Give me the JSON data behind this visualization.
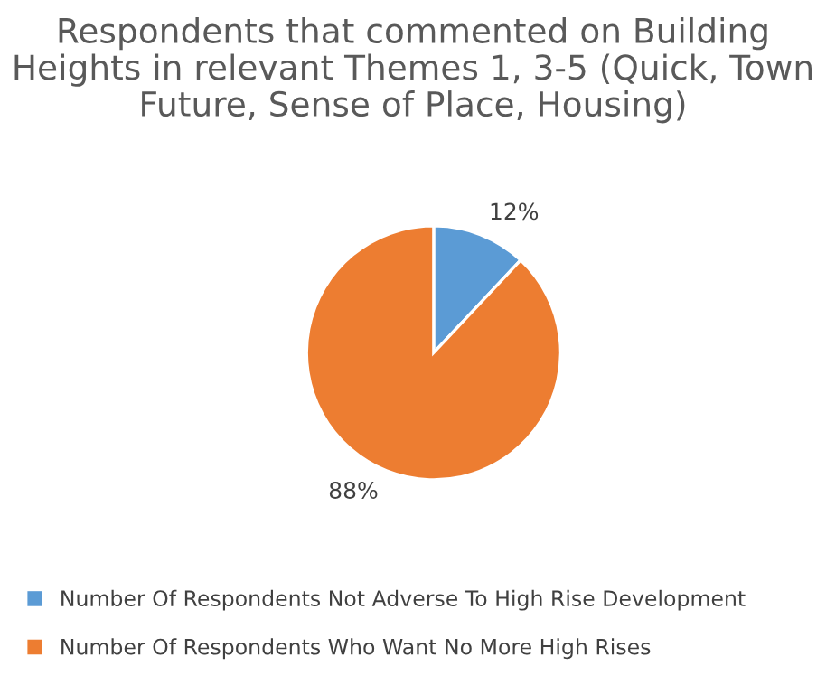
{
  "chart_data": {
    "type": "pie",
    "title": "Respondents that commented on Building Heights in relevant Themes 1, 3-5 (Quick, Town Future, Sense of Place, Housing)",
    "categories": [
      "Number Of Respondents Not Adverse To High Rise Development",
      "Number Of Respondents Who Want No More High Rises"
    ],
    "values": [
      12,
      88
    ],
    "value_labels": [
      "12%",
      "88%"
    ],
    "colors": [
      "#5b9bd5",
      "#ed7d31"
    ],
    "legend": "bottom"
  }
}
